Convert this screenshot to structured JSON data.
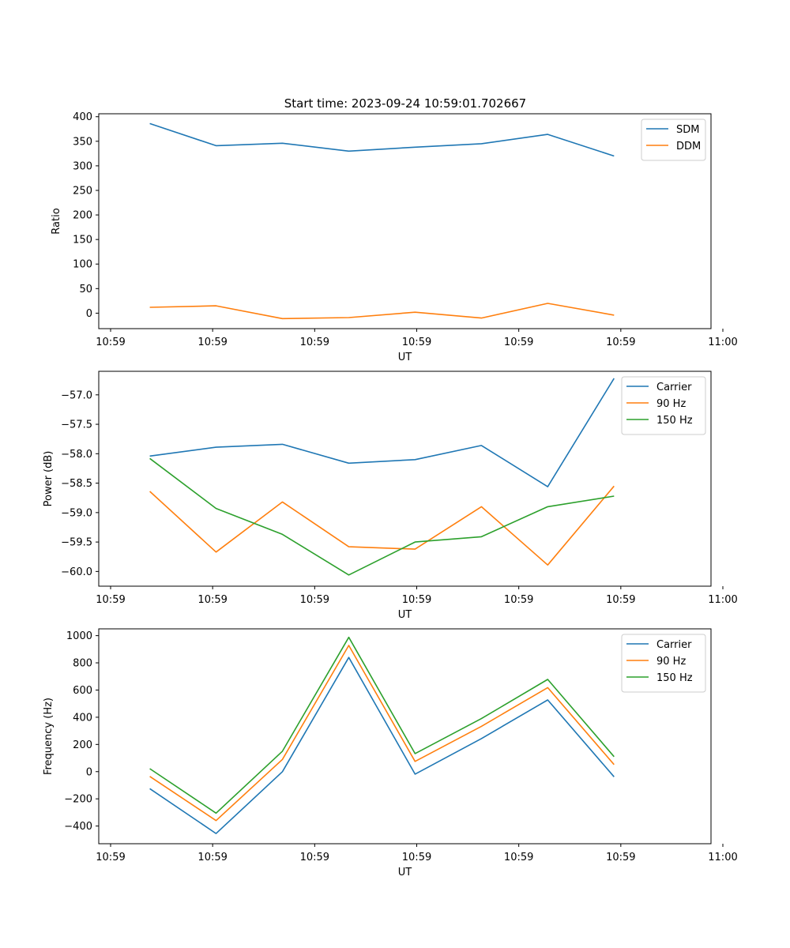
{
  "figure_title": "Start time: 2023-09-24 10:59:01.702667",
  "chart_data": [
    {
      "type": "line",
      "xlabel": "UT",
      "ylabel": "Ratio",
      "xlim": [
        0,
        6
      ],
      "ylim": [
        -31.5,
        406
      ],
      "x_ticks": [
        {
          "value": 0.0,
          "label": "10:59"
        },
        {
          "value": 1.0,
          "label": "10:59"
        },
        {
          "value": 2.0,
          "label": "10:59"
        },
        {
          "value": 3.0,
          "label": "10:59"
        },
        {
          "value": 4.0,
          "label": "10:59"
        },
        {
          "value": 5.0,
          "label": "10:59"
        },
        {
          "value": 6.0,
          "label": "11:00"
        }
      ],
      "y_ticks": [
        0,
        50,
        100,
        150,
        200,
        250,
        300,
        350,
        400
      ],
      "y_tick_labels": [
        "0",
        "50",
        "100",
        "150",
        "200",
        "250",
        "300",
        "350",
        "400"
      ],
      "x": [
        0.5,
        1.15,
        1.8,
        2.45,
        3.1,
        3.75,
        4.4,
        5.05
      ],
      "series": [
        {
          "name": "SDM",
          "color": "#1f77b4",
          "values": [
            386,
            341,
            346,
            330,
            338,
            345,
            364,
            320
          ]
        },
        {
          "name": "DDM",
          "color": "#ff7f0e",
          "values": [
            12,
            15,
            -11,
            -9,
            2,
            -10,
            20,
            -4
          ]
        }
      ],
      "legend": "top-right"
    },
    {
      "type": "line",
      "xlabel": "UT",
      "ylabel": "Power (dB)",
      "xlim": [
        0,
        6
      ],
      "ylim": [
        -60.25,
        -56.6
      ],
      "x_ticks": [
        {
          "value": 0.0,
          "label": "10:59"
        },
        {
          "value": 1.0,
          "label": "10:59"
        },
        {
          "value": 2.0,
          "label": "10:59"
        },
        {
          "value": 3.0,
          "label": "10:59"
        },
        {
          "value": 4.0,
          "label": "10:59"
        },
        {
          "value": 5.0,
          "label": "10:59"
        },
        {
          "value": 6.0,
          "label": "11:00"
        }
      ],
      "y_ticks": [
        -60.0,
        -59.5,
        -59.0,
        -58.5,
        -58.0,
        -57.5,
        -57.0
      ],
      "y_tick_labels": [
        "−60.0",
        "−59.5",
        "−59.0",
        "−58.5",
        "−58.0",
        "−57.5",
        "−57.0"
      ],
      "x": [
        0.5,
        1.15,
        1.8,
        2.45,
        3.1,
        3.75,
        4.4,
        5.05
      ],
      "series": [
        {
          "name": "Carrier",
          "color": "#1f77b4",
          "values": [
            -58.04,
            -57.89,
            -57.84,
            -58.16,
            -58.1,
            -57.86,
            -58.56,
            -56.72
          ]
        },
        {
          "name": "90 Hz",
          "color": "#ff7f0e",
          "values": [
            -58.64,
            -59.67,
            -58.82,
            -59.58,
            -59.62,
            -58.9,
            -59.89,
            -58.55
          ]
        },
        {
          "name": "150 Hz",
          "color": "#2ca02c",
          "values": [
            -58.08,
            -58.93,
            -59.37,
            -60.06,
            -59.5,
            -59.41,
            -58.9,
            -58.72
          ]
        }
      ],
      "legend": "top-right"
    },
    {
      "type": "line",
      "xlabel": "UT",
      "ylabel": "Frequency (Hz)",
      "xlim": [
        0,
        6
      ],
      "ylim": [
        -530,
        1050
      ],
      "x_ticks": [
        {
          "value": 0.0,
          "label": "10:59"
        },
        {
          "value": 1.0,
          "label": "10:59"
        },
        {
          "value": 2.0,
          "label": "10:59"
        },
        {
          "value": 3.0,
          "label": "10:59"
        },
        {
          "value": 4.0,
          "label": "10:59"
        },
        {
          "value": 5.0,
          "label": "10:59"
        },
        {
          "value": 6.0,
          "label": "11:00"
        }
      ],
      "y_ticks": [
        -400,
        -200,
        0,
        200,
        400,
        600,
        800,
        1000
      ],
      "y_tick_labels": [
        "−400",
        "−200",
        "0",
        "200",
        "400",
        "600",
        "800",
        "1000"
      ],
      "x": [
        0.5,
        1.15,
        1.8,
        2.45,
        3.1,
        3.75,
        4.4,
        5.05
      ],
      "series": [
        {
          "name": "Carrier",
          "color": "#1f77b4",
          "values": [
            -125,
            -455,
            0,
            840,
            -18,
            243,
            527,
            -38
          ]
        },
        {
          "name": "90 Hz",
          "color": "#ff7f0e",
          "values": [
            -35,
            -360,
            90,
            928,
            75,
            333,
            618,
            52
          ]
        },
        {
          "name": "150 Hz",
          "color": "#2ca02c",
          "values": [
            22,
            -305,
            150,
            988,
            133,
            390,
            678,
            110
          ]
        }
      ],
      "legend": "top-right"
    }
  ]
}
